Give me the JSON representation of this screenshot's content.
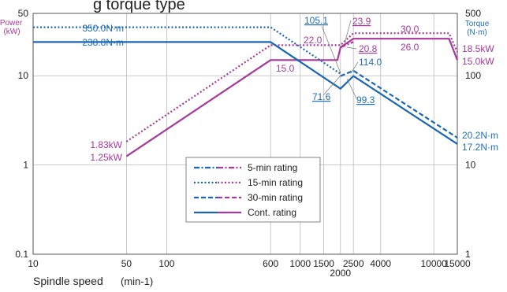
{
  "chart_data": {
    "type": "line",
    "title": "",
    "xlabel": "Spindle speed",
    "xlabel_unit": "(min-1)",
    "x_scale": "log",
    "xlim": [
      10,
      15000
    ],
    "x_ticks": [
      "10",
      "50",
      "100",
      "600",
      "1000",
      "1500",
      "2000",
      "2500",
      "4000",
      "10000",
      "15000"
    ],
    "x_tick_values": [
      10,
      50,
      100,
      600,
      1000,
      1500,
      2000,
      2500,
      4000,
      10000,
      15000
    ],
    "left_axis": {
      "label_line1": "Power",
      "label_line2": "(kW)",
      "scale": "log",
      "ylim": [
        0.1,
        50
      ],
      "ticks": [
        "0.1",
        "1",
        "10",
        "50"
      ],
      "tick_values": [
        0.1,
        1,
        10,
        50
      ]
    },
    "right_axis": {
      "label_line1": "Torque",
      "label_line2": "(N·m)",
      "scale": "log",
      "ylim": [
        1,
        500
      ],
      "ticks": [
        "1",
        "10",
        "100",
        "500"
      ],
      "tick_values": [
        1,
        10,
        100,
        500
      ]
    },
    "grid": true,
    "legend_position": "bottom-center",
    "legend": [
      {
        "name": "5-min rating",
        "style": "dashdot"
      },
      {
        "name": "15-min rating",
        "style": "dotted"
      },
      {
        "name": "30-min rating",
        "style": "dashed"
      },
      {
        "name": "Cont. rating",
        "style": "solid"
      }
    ],
    "power_series": [
      {
        "name": "15-min rating",
        "style": "dotted",
        "x": [
          50,
          600,
          2000,
          2500,
          13000,
          15000
        ],
        "y": [
          1.83,
          22.0,
          22.0,
          30.0,
          30.0,
          18.5
        ]
      },
      {
        "name": "Cont. rating",
        "style": "solid",
        "x": [
          50,
          600,
          1900,
          2000,
          2500,
          13000,
          15000
        ],
        "y": [
          1.25,
          15.0,
          15.0,
          20.8,
          26.0,
          26.0,
          15.0
        ]
      },
      {
        "name": "5-min rating",
        "style": "dashdot",
        "x": [
          2000,
          2500
        ],
        "y": [
          20.8,
          23.9
        ]
      }
    ],
    "torque_series": [
      {
        "name": "15-min rating",
        "style": "dotted",
        "x": [
          10,
          600,
          2000
        ],
        "y": [
          350.0,
          350.0,
          105.1
        ]
      },
      {
        "name": "Cont. rating",
        "style": "solid",
        "x": [
          10,
          600,
          2000,
          2500,
          15000
        ],
        "y": [
          238.8,
          238.8,
          71.6,
          99.3,
          17.2
        ]
      },
      {
        "name": "30-min rating",
        "style": "dashed",
        "x": [
          2000,
          2500,
          15000
        ],
        "y": [
          99.3,
          114.0,
          20.2
        ]
      }
    ],
    "annotations": {
      "torque_15min": "350.0N·m",
      "torque_cont": "238.8N·m",
      "power_15min_low": "1.83kW",
      "power_cont_low": "1.25kW",
      "v_105": "105.1",
      "v_71": "71.6",
      "v_99": "99.3",
      "v_114": "114.0",
      "v_23": "23.9",
      "v_22": "22.0",
      "v_20": "20.8",
      "v_15": "15.0",
      "v_30": "30.0",
      "v_26": "26.0",
      "end_185": "18.5kW",
      "end_150": "15.0kW",
      "end_202": "20.2N·m",
      "end_172": "17.2N·m"
    }
  },
  "header": {
    "partial_title": "g torque type"
  }
}
